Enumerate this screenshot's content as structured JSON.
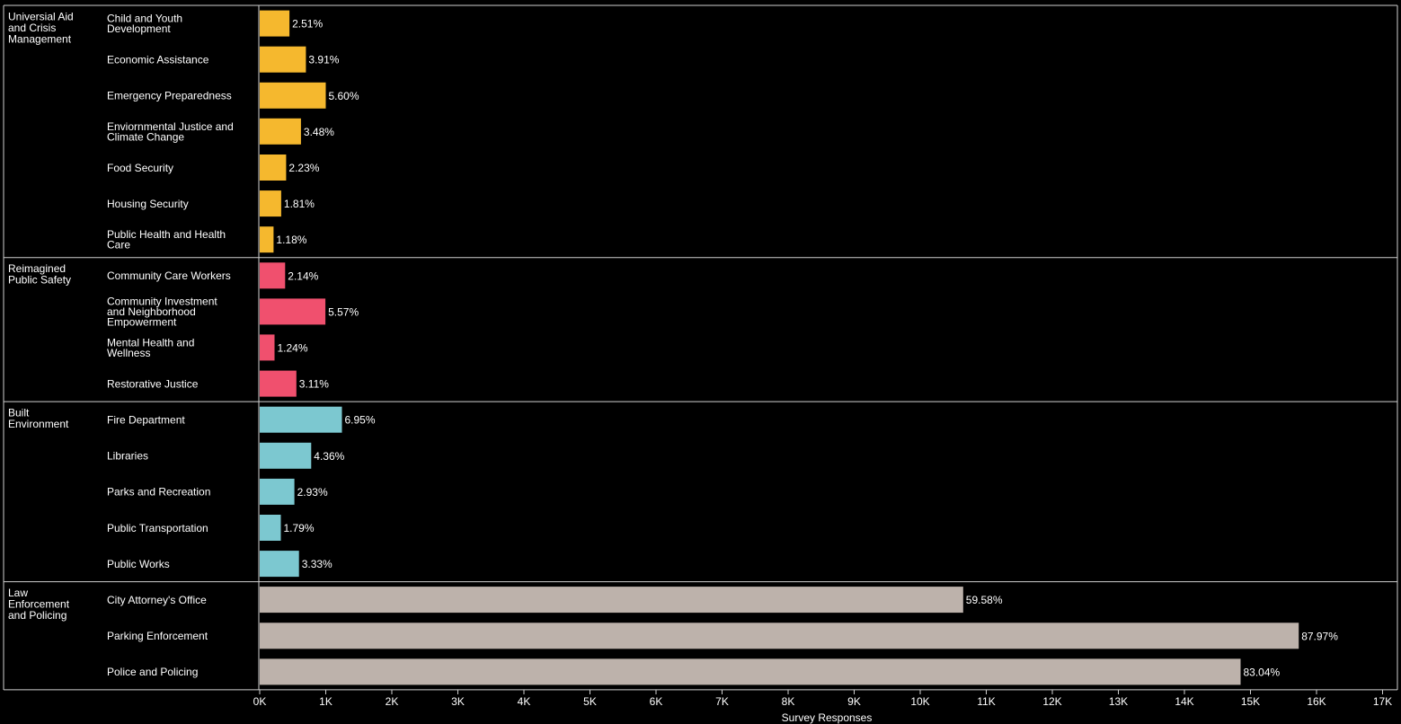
{
  "chart_data": {
    "type": "bar",
    "orientation": "horizontal",
    "xlabel": "Survey Responses",
    "xlim": [
      0,
      17000
    ],
    "x_ticks": [
      "0K",
      "1K",
      "2K",
      "3K",
      "4K",
      "5K",
      "6K",
      "7K",
      "8K",
      "9K",
      "10K",
      "11K",
      "12K",
      "13K",
      "14K",
      "15K",
      "16K",
      "17K"
    ],
    "grid": false,
    "groups": [
      {
        "name": "Universial Aid and Crisis Management",
        "name_lines": [
          "Universial Aid",
          "and Crisis",
          "Management"
        ],
        "color": "#f5b82e",
        "items": [
          {
            "label": "Child and Youth Development",
            "label_lines": [
              "Child and Youth",
              "Development"
            ],
            "value": 450,
            "pct": "2.51%"
          },
          {
            "label": "Economic Assistance",
            "label_lines": [
              "Economic Assistance"
            ],
            "value": 700,
            "pct": "3.91%"
          },
          {
            "label": "Emergency Preparedness",
            "label_lines": [
              "Emergency Preparedness"
            ],
            "value": 1000,
            "pct": "5.60%"
          },
          {
            "label": "Enviornmental Justice and Climate Change",
            "label_lines": [
              "Enviornmental Justice and",
              "Climate Change"
            ],
            "value": 625,
            "pct": "3.48%"
          },
          {
            "label": "Food Security",
            "label_lines": [
              "Food Security"
            ],
            "value": 400,
            "pct": "2.23%"
          },
          {
            "label": "Housing Security",
            "label_lines": [
              "Housing Security"
            ],
            "value": 325,
            "pct": "1.81%"
          },
          {
            "label": "Public Health and Health Care",
            "label_lines": [
              "Public Health and Health",
              "Care"
            ],
            "value": 210,
            "pct": "1.18%"
          }
        ]
      },
      {
        "name": "Reimagined Public Safety",
        "name_lines": [
          "Reimagined",
          "Public Safety"
        ],
        "color": "#f0506e",
        "items": [
          {
            "label": "Community Care Workers",
            "label_lines": [
              "Community Care Workers"
            ],
            "value": 385,
            "pct": "2.14%"
          },
          {
            "label": "Community Investment and Neighborhood Empowerment",
            "label_lines": [
              "Community Investment",
              "and Neighborhood",
              "Empowerment"
            ],
            "value": 995,
            "pct": "5.57%"
          },
          {
            "label": "Mental Health and Wellness",
            "label_lines": [
              "Mental Health and",
              "Wellness"
            ],
            "value": 225,
            "pct": "1.24%"
          },
          {
            "label": "Restorative Justice",
            "label_lines": [
              "Restorative Justice"
            ],
            "value": 555,
            "pct": "3.11%"
          }
        ]
      },
      {
        "name": "Built Environment",
        "name_lines": [
          "Built",
          "Environment"
        ],
        "color": "#7cc8d0",
        "items": [
          {
            "label": "Fire Department",
            "label_lines": [
              "Fire Department"
            ],
            "value": 1245,
            "pct": "6.95%"
          },
          {
            "label": "Libraries",
            "label_lines": [
              "Libraries"
            ],
            "value": 780,
            "pct": "4.36%"
          },
          {
            "label": "Parks and Recreation",
            "label_lines": [
              "Parks and Recreation"
            ],
            "value": 525,
            "pct": "2.93%"
          },
          {
            "label": "Public Transportation",
            "label_lines": [
              "Public Transportation"
            ],
            "value": 320,
            "pct": "1.79%"
          },
          {
            "label": "Public Works",
            "label_lines": [
              "Public Works"
            ],
            "value": 595,
            "pct": "3.33%"
          }
        ]
      },
      {
        "name": "Law Enforcement and Policing",
        "name_lines": [
          "Law",
          "Enforcement",
          "and Policing"
        ],
        "color": "#bdb2ab",
        "items": [
          {
            "label": "City Attorney's Office",
            "label_lines": [
              "City Attorney's Office"
            ],
            "value": 10650,
            "pct": "59.58%"
          },
          {
            "label": "Parking Enforcement",
            "label_lines": [
              "Parking Enforcement"
            ],
            "value": 15730,
            "pct": "87.97%"
          },
          {
            "label": "Police and Policing",
            "label_lines": [
              "Police and Policing"
            ],
            "value": 14850,
            "pct": "83.04%"
          }
        ]
      }
    ]
  }
}
